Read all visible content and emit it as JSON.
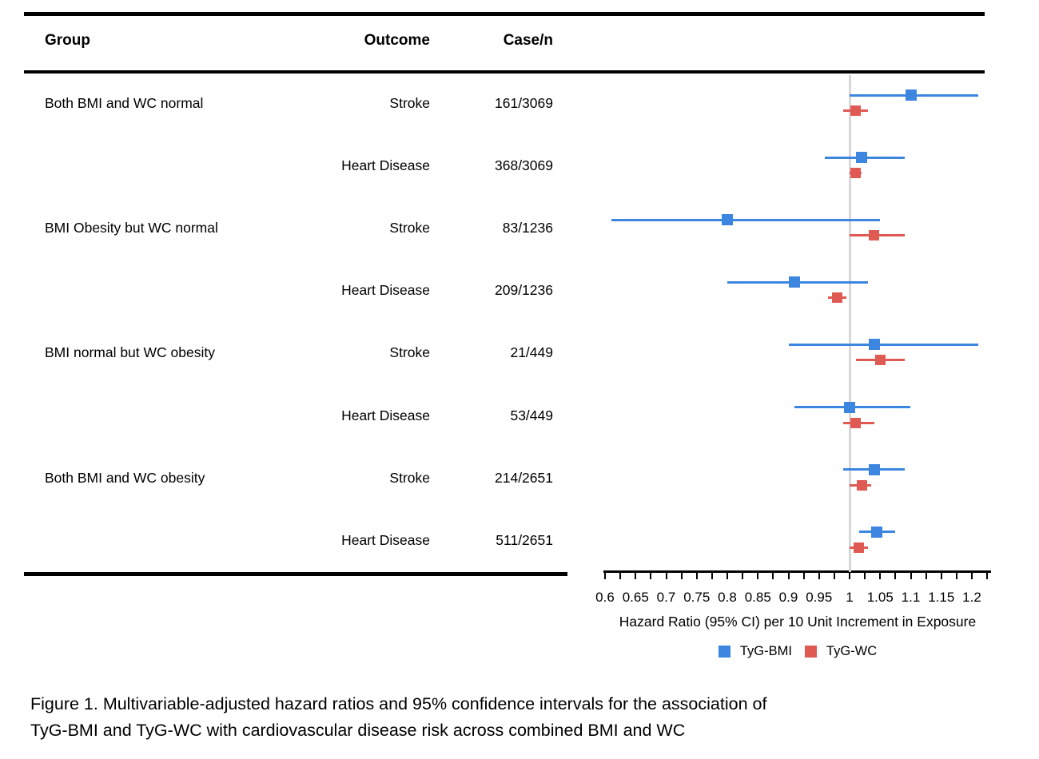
{
  "figure": {
    "caption_line1": "Figure 1. Multivariable-adjusted hazard ratios and 95% confidence intervals for the association of",
    "caption_line2": "TyG-BMI and TyG-WC with cardiovascular disease risk across combined BMI and WC"
  },
  "table": {
    "headers": {
      "group": "Group",
      "outcome": "Outcome",
      "case_n": "Case/n"
    }
  },
  "colors": {
    "tyg_bmi": "#3d86e0",
    "tyg_wc": "#e05a54",
    "reference_line": "#d8d8d8",
    "rule": "#000000"
  },
  "chart_data": {
    "type": "forest",
    "title": "",
    "xlabel": "Hazard Ratio (95% CI) per 10 Unit Increment in Exposure",
    "xlim": [
      0.6,
      1.225
    ],
    "x_tick_minor_step": 0.025,
    "x_tick_label_step": 0.05,
    "x_tick_labels": [
      "0.6",
      "0.65",
      "0.7",
      "0.75",
      "0.8",
      "0.85",
      "0.9",
      "0.95",
      "1",
      "1.05",
      "1.1",
      "1.15",
      "1.2"
    ],
    "reference_line": 1,
    "grid": false,
    "legend_position": "bottom",
    "legend": [
      {
        "name": "TyG-BMI",
        "color": "#3d86e0"
      },
      {
        "name": "TyG-WC",
        "color": "#e05a54"
      }
    ],
    "rows": [
      {
        "group": "Both BMI and WC normal",
        "outcome": "Stroke",
        "case_n": "161/3069",
        "tyg_bmi": {
          "hr": 1.1,
          "lo": 1.0,
          "hi": 1.21
        },
        "tyg_wc": {
          "hr": 1.01,
          "lo": 0.99,
          "hi": 1.03
        }
      },
      {
        "group": "",
        "outcome": "Heart Disease",
        "case_n": "368/3069",
        "tyg_bmi": {
          "hr": 1.02,
          "lo": 0.96,
          "hi": 1.09
        },
        "tyg_wc": {
          "hr": 1.01,
          "lo": 1.0,
          "hi": 1.02
        }
      },
      {
        "group": "BMI Obesity but WC normal",
        "outcome": "Stroke",
        "case_n": "83/1236",
        "tyg_bmi": {
          "hr": 0.8,
          "lo": 0.61,
          "hi": 1.05
        },
        "tyg_wc": {
          "hr": 1.04,
          "lo": 1.0,
          "hi": 1.09
        }
      },
      {
        "group": "",
        "outcome": "Heart Disease",
        "case_n": "209/1236",
        "tyg_bmi": {
          "hr": 0.91,
          "lo": 0.8,
          "hi": 1.03
        },
        "tyg_wc": {
          "hr": 0.98,
          "lo": 0.965,
          "hi": 0.995
        }
      },
      {
        "group": "BMI normal but WC obesity",
        "outcome": "Stroke",
        "case_n": "21/449",
        "tyg_bmi": {
          "hr": 1.04,
          "lo": 0.9,
          "hi": 1.21
        },
        "tyg_wc": {
          "hr": 1.05,
          "lo": 1.01,
          "hi": 1.09
        }
      },
      {
        "group": "",
        "outcome": "Heart Disease",
        "case_n": "53/449",
        "tyg_bmi": {
          "hr": 1.0,
          "lo": 0.91,
          "hi": 1.1
        },
        "tyg_wc": {
          "hr": 1.01,
          "lo": 0.99,
          "hi": 1.04
        }
      },
      {
        "group": "Both BMI and WC obesity",
        "outcome": "Stroke",
        "case_n": "214/2651",
        "tyg_bmi": {
          "hr": 1.04,
          "lo": 0.99,
          "hi": 1.09
        },
        "tyg_wc": {
          "hr": 1.02,
          "lo": 1.0,
          "hi": 1.035
        }
      },
      {
        "group": "",
        "outcome": "Heart Disease",
        "case_n": "511/2651",
        "tyg_bmi": {
          "hr": 1.044,
          "lo": 1.016,
          "hi": 1.075
        },
        "tyg_wc": {
          "hr": 1.015,
          "lo": 1.0,
          "hi": 1.03
        }
      }
    ]
  }
}
